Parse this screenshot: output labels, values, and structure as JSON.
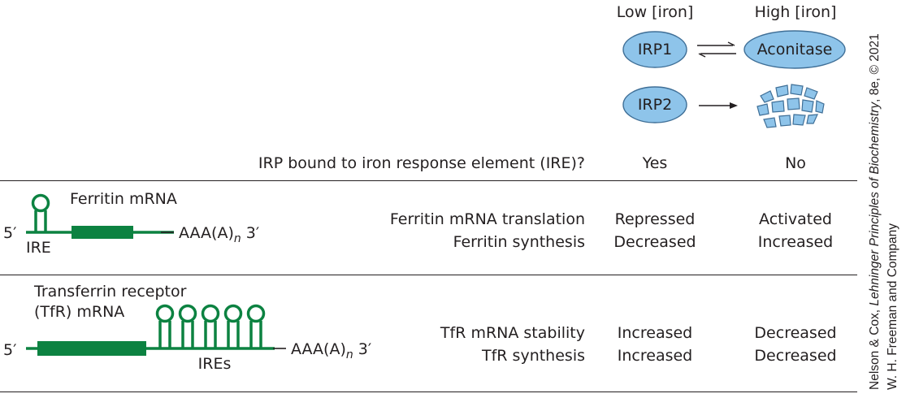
{
  "header": {
    "low_iron": "Low [iron]",
    "high_iron": "High [iron]",
    "irp1": "IRP1",
    "aconitase": "Aconitase",
    "irp2": "IRP2"
  },
  "columns": {
    "question": "IRP bound to iron response element (IRE)?",
    "low_answer": "Yes",
    "high_answer": "No"
  },
  "ferritin": {
    "mrna_label": "Ferritin mRNA",
    "five_prime": "5′",
    "ire": "IRE",
    "tail_prefix": "AAA(A)",
    "tail_n": "n",
    "tail_suffix": " 3′",
    "row1_label": "Ferritin mRNA translation",
    "row2_label": "Ferritin synthesis",
    "row1_low": "Repressed",
    "row2_low": "Decreased",
    "row1_high": "Activated",
    "row2_high": "Increased"
  },
  "tfr": {
    "mrna_label_1": "Transferrin receptor",
    "mrna_label_2": "(TfR) mRNA",
    "five_prime": "5′",
    "ires": "IREs",
    "tail_prefix": "AAA(A)",
    "tail_n": "n",
    "tail_suffix": " 3′",
    "row1_label": "TfR mRNA stability",
    "row2_label": "TfR synthesis",
    "row1_low": "Increased",
    "row2_low": "Increased",
    "row1_high": "Decreased",
    "row2_high": "Decreased"
  },
  "credit": {
    "line1_prefix": "Nelson & Cox, ",
    "line1_title": "Lehninger Principles of Biochemistry",
    "line1_suffix": ", 8e, © 2021",
    "line2": "W. H. Freeman and Company"
  },
  "colors": {
    "protein_fill": "#8ec4ea",
    "protein_stroke": "#3f6f97",
    "mrna_green": "#0c8241",
    "text": "#231f20"
  }
}
